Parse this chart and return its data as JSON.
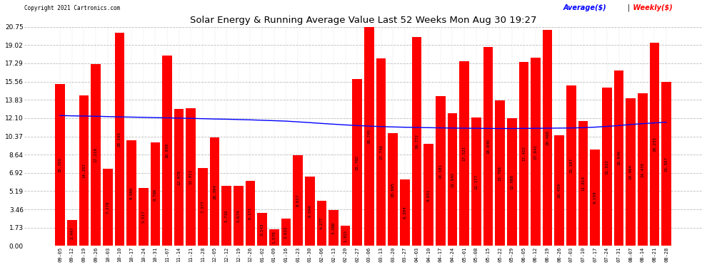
{
  "title": "Solar Energy & Running Average Value Last 52 Weeks Mon Aug 30 19:27",
  "copyright": "Copyright 2021 Cartronics.com",
  "bar_color": "#ff0000",
  "avg_color": "#0000ff",
  "weekly_color": "#ff0000",
  "background_color": "#ffffff",
  "grid_color": "#bbbbbb",
  "ylim": [
    0,
    20.75
  ],
  "yticks": [
    0.0,
    1.73,
    3.46,
    5.19,
    6.92,
    8.64,
    10.37,
    12.1,
    13.83,
    15.56,
    17.29,
    19.02,
    20.75
  ],
  "categories": [
    "09-05",
    "09-12",
    "09-19",
    "09-26",
    "10-03",
    "10-10",
    "10-17",
    "10-24",
    "10-31",
    "11-07",
    "11-14",
    "11-21",
    "11-28",
    "12-05",
    "12-12",
    "12-19",
    "12-26",
    "01-02",
    "01-09",
    "01-16",
    "01-23",
    "01-30",
    "02-06",
    "02-13",
    "02-20",
    "02-27",
    "03-06",
    "03-13",
    "03-20",
    "03-27",
    "04-03",
    "04-10",
    "04-17",
    "04-24",
    "05-01",
    "05-08",
    "05-15",
    "05-22",
    "05-29",
    "06-05",
    "06-12",
    "06-19",
    "06-26",
    "07-03",
    "07-10",
    "07-17",
    "07-24",
    "07-31",
    "08-07",
    "08-14",
    "08-21",
    "08-28"
  ],
  "weekly_values": [
    15.355,
    2.447,
    14.257,
    17.218,
    7.278,
    20.195,
    9.986,
    5.517,
    9.786,
    18.039,
    12.978,
    13.013,
    7.377,
    10.304,
    5.716,
    5.674,
    6.171,
    3.143,
    1.579,
    2.622,
    8.617,
    6.594,
    4.277,
    3.38,
    1.921,
    15.792,
    20.745,
    17.74,
    10.695,
    6.304,
    19.772,
    9.651,
    14.181,
    12.543,
    17.521,
    12.177,
    18.846,
    13.766,
    12.088,
    17.452,
    17.841,
    20.468,
    10.459,
    15.187,
    11.814,
    9.159,
    15.022,
    16.646,
    14.004,
    14.47,
    19.235,
    15.507
  ],
  "avg_values": [
    12.35,
    12.32,
    12.3,
    12.28,
    12.25,
    12.22,
    12.2,
    12.18,
    12.15,
    12.13,
    12.1,
    12.08,
    12.05,
    12.02,
    12.0,
    11.97,
    11.94,
    11.9,
    11.86,
    11.82,
    11.75,
    11.68,
    11.6,
    11.53,
    11.46,
    11.4,
    11.35,
    11.3,
    11.27,
    11.24,
    11.22,
    11.2,
    11.18,
    11.16,
    11.15,
    11.14,
    11.13,
    11.12,
    11.12,
    11.13,
    11.14,
    11.15,
    11.16,
    11.17,
    11.2,
    11.25,
    11.32,
    11.4,
    11.5,
    11.58,
    11.65,
    11.72
  ]
}
